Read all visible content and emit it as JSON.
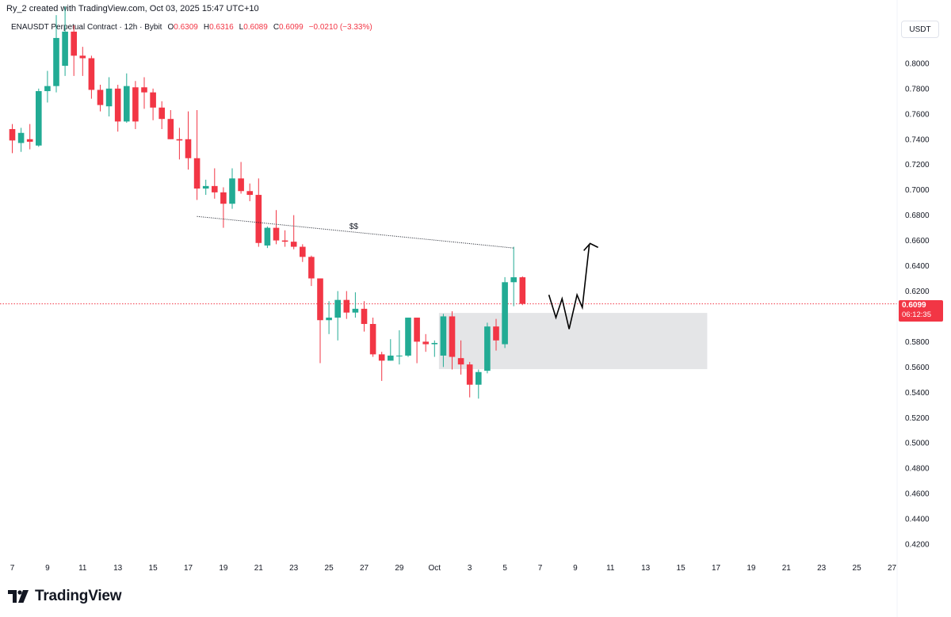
{
  "header": {
    "caption": "Ry_2 created with TradingView.com, Oct 03, 2025 15:47 UTC+10",
    "symbol": "ENAUSDT Perpetual Contract · 12h · Bybit",
    "o_label": "O",
    "o_value": "0.6309",
    "h_label": "H",
    "h_value": "0.6316",
    "l_label": "L",
    "l_value": "0.6089",
    "c_label": "C",
    "c_value": "0.6099",
    "change": "−0.0210 (−3.33%)"
  },
  "unit_label": "USDT",
  "last_price": {
    "price": "0.6099",
    "countdown": "06:12:35"
  },
  "footer": {
    "brand": "TradingView"
  },
  "colors": {
    "up": "#22ab94",
    "down": "#f23645",
    "zone": "#e3e4e6",
    "drawing": "#131722",
    "axis_text": "#131722"
  },
  "chart_data": {
    "type": "candlestick",
    "timeframe": "12h",
    "y_axis": {
      "ylim": [
        0.41,
        0.845
      ],
      "ticks": [
        "0.8000",
        "0.7800",
        "0.7600",
        "0.7400",
        "0.7200",
        "0.7000",
        "0.6800",
        "0.6600",
        "0.6400",
        "0.6200",
        "0.5800",
        "0.5600",
        "0.5400",
        "0.5200",
        "0.5000",
        "0.4800",
        "0.4600",
        "0.4400",
        "0.4200"
      ]
    },
    "x_axis": {
      "labels": [
        "7",
        "9",
        "11",
        "13",
        "15",
        "17",
        "19",
        "21",
        "23",
        "25",
        "27",
        "29",
        "Oct",
        "3",
        "5",
        "7",
        "9",
        "11",
        "13",
        "15",
        "17",
        "19",
        "21",
        "23",
        "25",
        "27"
      ]
    },
    "candles": [
      [
        0.748,
        0.739,
        0.752,
        0.729
      ],
      [
        0.737,
        0.745,
        0.749,
        0.73
      ],
      [
        0.74,
        0.738,
        0.752,
        0.732
      ],
      [
        0.735,
        0.778,
        0.78,
        0.734
      ],
      [
        0.778,
        0.782,
        0.794,
        0.769
      ],
      [
        0.782,
        0.82,
        0.838,
        0.777
      ],
      [
        0.798,
        0.825,
        0.845,
        0.79
      ],
      [
        0.825,
        0.806,
        0.83,
        0.79
      ],
      [
        0.806,
        0.804,
        0.813,
        0.79
      ],
      [
        0.804,
        0.779,
        0.806,
        0.772
      ],
      [
        0.779,
        0.767,
        0.783,
        0.762
      ],
      [
        0.766,
        0.78,
        0.789,
        0.758
      ],
      [
        0.78,
        0.754,
        0.783,
        0.746
      ],
      [
        0.754,
        0.782,
        0.792,
        0.753
      ],
      [
        0.781,
        0.754,
        0.786,
        0.748
      ],
      [
        0.781,
        0.777,
        0.789,
        0.764
      ],
      [
        0.777,
        0.765,
        0.78,
        0.755
      ],
      [
        0.765,
        0.756,
        0.77,
        0.748
      ],
      [
        0.756,
        0.74,
        0.763,
        0.74
      ],
      [
        0.74,
        0.739,
        0.749,
        0.724
      ],
      [
        0.74,
        0.725,
        0.762,
        0.716
      ],
      [
        0.725,
        0.701,
        0.763,
        0.692
      ],
      [
        0.701,
        0.703,
        0.708,
        0.696
      ],
      [
        0.703,
        0.698,
        0.717,
        0.693
      ],
      [
        0.698,
        0.689,
        0.702,
        0.67
      ],
      [
        0.689,
        0.709,
        0.717,
        0.685
      ],
      [
        0.709,
        0.699,
        0.722,
        0.697
      ],
      [
        0.699,
        0.696,
        0.705,
        0.691
      ],
      [
        0.696,
        0.658,
        0.709,
        0.655
      ],
      [
        0.656,
        0.67,
        0.671,
        0.654
      ],
      [
        0.67,
        0.66,
        0.684,
        0.657
      ],
      [
        0.66,
        0.659,
        0.668,
        0.655
      ],
      [
        0.659,
        0.655,
        0.68,
        0.653
      ],
      [
        0.655,
        0.647,
        0.657,
        0.643
      ],
      [
        0.647,
        0.63,
        0.648,
        0.624
      ],
      [
        0.63,
        0.597,
        0.63,
        0.563
      ],
      [
        0.597,
        0.599,
        0.612,
        0.586
      ],
      [
        0.599,
        0.613,
        0.62,
        0.581
      ],
      [
        0.613,
        0.603,
        0.62,
        0.598
      ],
      [
        0.603,
        0.606,
        0.619,
        0.599
      ],
      [
        0.606,
        0.594,
        0.612,
        0.588
      ],
      [
        0.594,
        0.57,
        0.599,
        0.568
      ],
      [
        0.57,
        0.565,
        0.572,
        0.549
      ],
      [
        0.565,
        0.569,
        0.582,
        0.565
      ],
      [
        0.569,
        0.569,
        0.589,
        0.562
      ],
      [
        0.569,
        0.599,
        0.599,
        0.568
      ],
      [
        0.599,
        0.58,
        0.599,
        0.563
      ],
      [
        0.58,
        0.578,
        0.586,
        0.572
      ],
      [
        0.578,
        0.579,
        0.581,
        0.568
      ],
      [
        0.569,
        0.6,
        0.602,
        0.56
      ],
      [
        0.6,
        0.568,
        0.604,
        0.558
      ],
      [
        0.567,
        0.562,
        0.581,
        0.554
      ],
      [
        0.562,
        0.546,
        0.564,
        0.536
      ],
      [
        0.546,
        0.556,
        0.558,
        0.535
      ],
      [
        0.557,
        0.592,
        0.595,
        0.555
      ],
      [
        0.592,
        0.581,
        0.598,
        0.573
      ],
      [
        0.578,
        0.627,
        0.631,
        0.575
      ],
      [
        0.627,
        0.6309,
        0.655,
        0.608
      ],
      [
        0.6309,
        0.6099,
        0.6316,
        0.6089
      ]
    ],
    "candles_format": "[open, close, high, low]",
    "annotations": {
      "liquidity_label": "$$",
      "liquidity_line": [
        [
          21.0,
          0.679
        ],
        [
          57.0,
          0.654
        ]
      ],
      "demand_zone": {
        "x_from": 48.5,
        "x_to": 79,
        "y_from": 0.5583,
        "y_to": 0.6027
      },
      "projection_path": [
        [
          61.0,
          0.617
        ],
        [
          61.8,
          0.599
        ],
        [
          62.5,
          0.614
        ],
        [
          63.3,
          0.59
        ],
        [
          64.2,
          0.617
        ],
        [
          64.8,
          0.607
        ],
        [
          65.6,
          0.657
        ]
      ]
    },
    "current_price_line": 0.6099
  }
}
